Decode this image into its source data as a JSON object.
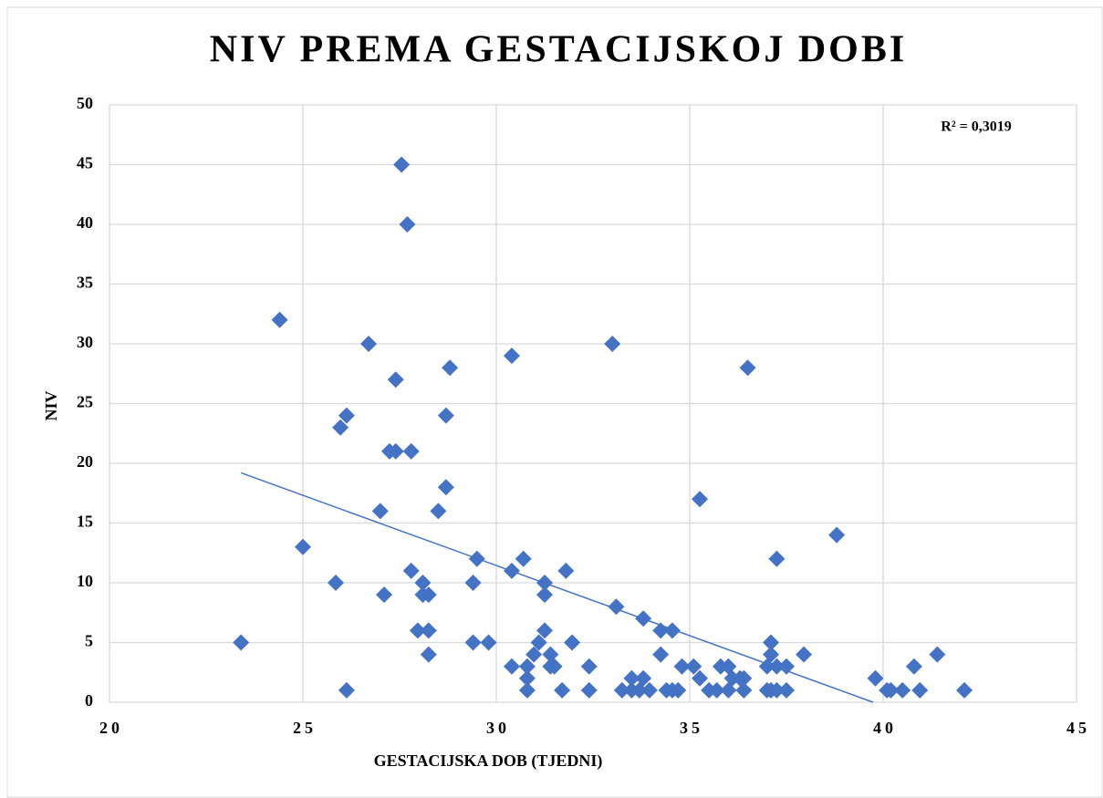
{
  "chart_data": {
    "type": "scatter",
    "title": "NIV PREMA GESTACIJSKOJ DOBI",
    "x_label": "GESTACIJSKA DOB (TJEDNI)",
    "y_label": "NIV",
    "annotation": "R² = 0,3019",
    "color": "#4472c4",
    "grid": true,
    "xlim": [
      20,
      45
    ],
    "xticks": [
      20,
      25,
      30,
      35,
      40,
      45
    ],
    "ylim": [
      0,
      50
    ],
    "yticks": [
      0,
      5,
      10,
      15,
      20,
      25,
      30,
      35,
      40,
      45,
      50
    ],
    "x": [
      23.4,
      24.4,
      25.0,
      25.85,
      25.97,
      26.13,
      26.13,
      26.7,
      27.0,
      27.1,
      27.24,
      27.4,
      27.4,
      27.55,
      27.7,
      27.8,
      27.8,
      27.97,
      28.1,
      28.1,
      28.25,
      28.25,
      28.25,
      28.5,
      28.7,
      28.7,
      28.8,
      29.4,
      29.4,
      29.5,
      29.8,
      30.4,
      30.4,
      30.4,
      30.7,
      30.8,
      30.8,
      30.8,
      30.97,
      31.1,
      31.25,
      31.25,
      31.25,
      31.4,
      31.4,
      31.5,
      31.7,
      31.8,
      31.96,
      32.4,
      32.4,
      33.0,
      33.1,
      33.25,
      33.5,
      33.5,
      33.7,
      33.8,
      33.8,
      33.96,
      34.25,
      34.25,
      34.4,
      34.55,
      34.55,
      34.7,
      34.8,
      35.1,
      35.26,
      35.26,
      35.5,
      35.7,
      35.8,
      36.0,
      36.0,
      36.1,
      36.3,
      36.4,
      36.4,
      36.5,
      37.0,
      37.0,
      37.1,
      37.1,
      37.1,
      37.25,
      37.25,
      37.25,
      37.5,
      37.5,
      37.95,
      38.8,
      39.8,
      40.1,
      40.2,
      40.5,
      40.8,
      40.95,
      41.4,
      42.1
    ],
    "values": [
      5,
      32,
      13,
      10,
      23,
      24,
      1,
      30,
      16,
      9,
      21,
      21,
      27,
      45,
      40,
      21,
      11,
      6,
      10,
      9,
      9,
      6,
      4,
      16,
      18,
      24,
      28,
      10,
      5,
      12,
      5,
      29,
      11,
      3,
      12,
      3,
      2,
      1,
      4,
      5,
      10,
      9,
      6,
      4,
      3,
      3,
      1,
      11,
      5,
      3,
      1,
      30,
      8,
      1,
      2,
      1,
      1,
      2,
      7,
      1,
      4,
      6,
      1,
      6,
      1,
      1,
      3,
      3,
      2,
      17,
      1,
      1,
      3,
      3,
      1,
      2,
      2,
      2,
      1,
      28,
      3,
      1,
      5,
      4,
      1,
      3,
      12,
      1,
      3,
      1,
      4,
      14,
      2,
      1,
      1,
      1,
      3,
      1,
      4,
      1
    ],
    "trendline": {
      "x": [
        23.4,
        39.74
      ],
      "values": [
        19.2,
        0
      ]
    }
  }
}
